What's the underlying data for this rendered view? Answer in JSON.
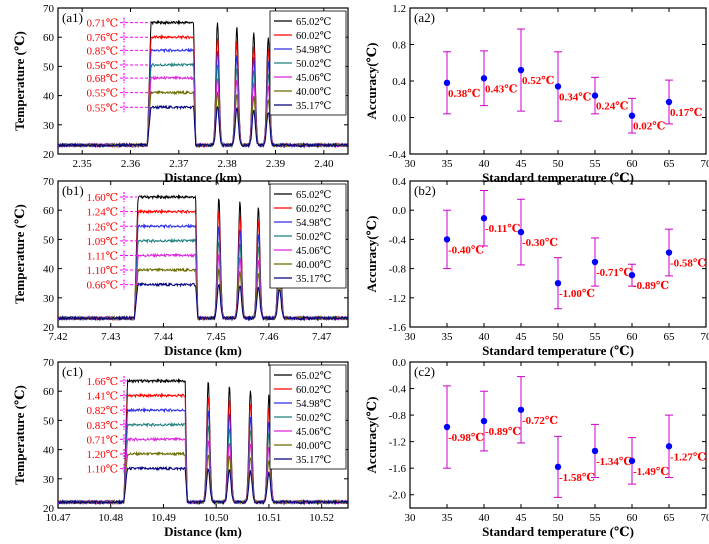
{
  "chart_data": [
    {
      "type": "line",
      "panel_label": "(a1)",
      "xlabel": "Distance (km)",
      "ylabel": "Temperature (℃)",
      "xlim": [
        2.345,
        2.405
      ],
      "ylim": [
        20,
        70
      ],
      "xticks": [
        "2.35",
        "2.36",
        "2.37",
        "2.38",
        "2.39",
        "2.40"
      ],
      "yticks": [
        "20",
        "30",
        "40",
        "50",
        "60",
        "70"
      ],
      "heating_start": 2.3635,
      "flat_end": 2.3735,
      "peaks": [
        2.378,
        2.382,
        2.3855,
        2.3885
      ],
      "baseline": 23,
      "legend": [
        "65.02℃",
        "60.02℃",
        "54.98℃",
        "50.02℃",
        "45.06℃",
        "40.00℃",
        "35.17℃"
      ],
      "series_levels": [
        65,
        60,
        55.5,
        50.5,
        46,
        41,
        36
      ],
      "accuracies": [
        "0.71℃",
        "0.76℃",
        "0.85℃",
        "0.56℃",
        "0.68℃",
        "0.55℃",
        "0.55℃"
      ]
    },
    {
      "type": "scatter",
      "panel_label": "(a2)",
      "xlabel": "Standard temperature (℃)",
      "ylabel": "Accuracy(℃)",
      "xlim": [
        30,
        70
      ],
      "ylim": [
        -0.4,
        1.2
      ],
      "xticks": [
        "30",
        "35",
        "40",
        "45",
        "50",
        "55",
        "60",
        "65",
        "70"
      ],
      "yticks": [
        "-0.4",
        "0.0",
        "0.4",
        "0.8",
        "1.2"
      ],
      "x": [
        35,
        40,
        45,
        50,
        55,
        60,
        65
      ],
      "y": [
        0.38,
        0.43,
        0.52,
        0.34,
        0.24,
        0.02,
        0.17
      ],
      "err": [
        0.34,
        0.3,
        0.45,
        0.38,
        0.2,
        0.19,
        0.24
      ],
      "labels": [
        "0.38℃",
        "0.43℃",
        "0.52℃",
        "0.34℃",
        "0.24℃",
        "0.02℃",
        "0.17℃"
      ]
    },
    {
      "type": "line",
      "panel_label": "(b1)",
      "xlabel": "Distance (km)",
      "ylabel": "Temperature (℃)",
      "xlim": [
        7.42,
        7.475
      ],
      "ylim": [
        20,
        70
      ],
      "xticks": [
        "7.42",
        "7.43",
        "7.44",
        "7.45",
        "7.46",
        "7.47"
      ],
      "yticks": [
        "20",
        "30",
        "40",
        "50",
        "60",
        "70"
      ],
      "heating_start": 7.4345,
      "flat_end": 7.4465,
      "peaks": [
        7.4505,
        7.4545,
        7.458,
        7.462
      ],
      "baseline": 23,
      "legend": [
        "65.02℃",
        "60.02℃",
        "54.98℃",
        "50.02℃",
        "45.06℃",
        "40.00℃",
        "35.17℃"
      ],
      "series_levels": [
        64.5,
        59.5,
        54.5,
        49.5,
        44.5,
        39.5,
        34.5
      ],
      "accuracies": [
        "1.60℃",
        "1.24℃",
        "1.26℃",
        "1.09℃",
        "1.11℃",
        "1.10℃",
        "0.66℃"
      ]
    },
    {
      "type": "scatter",
      "panel_label": "(b2)",
      "xlabel": "Standard temperature (℃)",
      "ylabel": "Accuracy(℃)",
      "xlim": [
        30,
        70
      ],
      "ylim": [
        -1.6,
        0.4
      ],
      "xticks": [
        "30",
        "35",
        "40",
        "45",
        "50",
        "55",
        "60",
        "65",
        "70"
      ],
      "yticks": [
        "-1.6",
        "-1.2",
        "-0.8",
        "-0.4",
        "0.0",
        "0.4"
      ],
      "x": [
        35,
        40,
        45,
        50,
        55,
        60,
        65
      ],
      "y": [
        -0.4,
        -0.11,
        -0.3,
        -1.0,
        -0.71,
        -0.89,
        -0.58
      ],
      "err": [
        0.4,
        0.38,
        0.45,
        0.35,
        0.33,
        0.15,
        0.32
      ],
      "labels": [
        "-0.40℃",
        "-0.11℃",
        "-0.30℃",
        "-1.00℃",
        "-0.71℃",
        "-0.89℃",
        "-0.58℃"
      ]
    },
    {
      "type": "line",
      "panel_label": "(c1)",
      "xlabel": "Distance (km)",
      "ylabel": "Temperature (℃)",
      "xlim": [
        10.47,
        10.525
      ],
      "ylim": [
        20,
        70
      ],
      "xticks": [
        "10.47",
        "10.48",
        "10.49",
        "10.50",
        "10.51",
        "10.52"
      ],
      "yticks": [
        "20",
        "30",
        "40",
        "50",
        "60",
        "70"
      ],
      "heating_start": 10.4825,
      "flat_end": 10.4945,
      "peaks": [
        10.4985,
        10.5025,
        10.5065,
        10.51
      ],
      "baseline": 22,
      "legend": [
        "65.02℃",
        "60.02℃",
        "54.98℃",
        "50.02℃",
        "45.06℃",
        "40.00℃",
        "35.17℃"
      ],
      "series_levels": [
        63.5,
        58.5,
        53.5,
        48.5,
        43.5,
        38.5,
        33.5
      ],
      "accuracies": [
        "1.66℃",
        "1.41℃",
        "0.82℃",
        "0.83℃",
        "0.71℃",
        "1.20℃",
        "1.10℃"
      ]
    },
    {
      "type": "scatter",
      "panel_label": "(c2)",
      "xlabel": "Standard temperature (℃)",
      "ylabel": "Accuracy(℃)",
      "xlim": [
        30,
        70
      ],
      "ylim": [
        -2.2,
        0.0
      ],
      "xticks": [
        "30",
        "35",
        "40",
        "45",
        "50",
        "55",
        "60",
        "65",
        "70"
      ],
      "yticks": [
        "-2.0",
        "-1.6",
        "-1.2",
        "-0.8",
        "-0.4",
        "0.0"
      ],
      "x": [
        35,
        40,
        45,
        50,
        55,
        60,
        65
      ],
      "y": [
        -0.98,
        -0.89,
        -0.72,
        -1.58,
        -1.34,
        -1.49,
        -1.27
      ],
      "err": [
        0.62,
        0.45,
        0.5,
        0.46,
        0.4,
        0.35,
        0.47
      ],
      "labels": [
        "-0.98℃",
        "-0.89℃",
        "-0.72℃",
        "-1.58℃",
        "-1.34℃",
        "-1.49℃",
        "-1.27℃"
      ]
    }
  ],
  "colors": {
    "series": [
      "#000000",
      "#ff0000",
      "#2e2ee8",
      "#1f7f7f",
      "#e020e0",
      "#6b6b00",
      "#000080"
    ],
    "accent": "#ff0000",
    "marker": "#0000ff",
    "errorbar": "#cc00cc",
    "guide": "#ff00ff"
  }
}
